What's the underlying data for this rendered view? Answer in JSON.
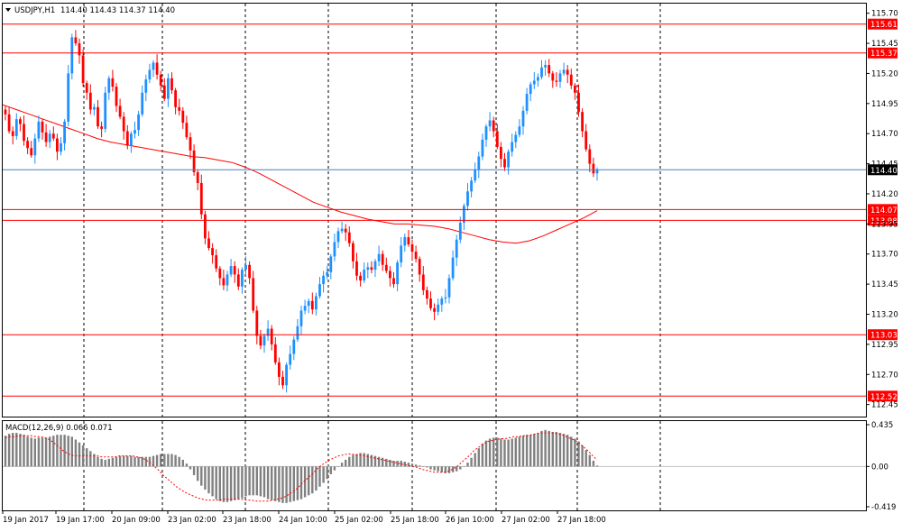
{
  "header": {
    "symbol_label": "USDJPY,H1",
    "ohlc_text": "114.40 114.43 114.37 114.40"
  },
  "macd_header": {
    "label": "MACD(12,26,9) 0.066 0.071"
  },
  "colors": {
    "bull": "#1e90ff",
    "bear": "#ff0000",
    "level": "#ff0000",
    "ma": "#ff0000",
    "current": "#4a7fc1",
    "histogram": "#808080",
    "signal": "#ff0000",
    "grid": "#000000",
    "frame": "#000000",
    "background": "#ffffff"
  },
  "chart_data": {
    "type": "candlestick",
    "symbol": "USDJPY",
    "timeframe": "H1",
    "price_axis": {
      "ylim": [
        112.35,
        115.78
      ],
      "ticks": [
        "115.70",
        "115.45",
        "115.20",
        "114.95",
        "114.70",
        "114.45",
        "114.20",
        "113.95",
        "113.70",
        "113.45",
        "113.20",
        "112.95",
        "112.70",
        "112.45"
      ]
    },
    "horizontal_levels": [
      {
        "label": "115.61",
        "value": 115.61
      },
      {
        "label": "115.37",
        "value": 115.37
      },
      {
        "label": "114.07",
        "value": 114.07
      },
      {
        "label": "113.98",
        "value": 113.98
      },
      {
        "label": "113.03",
        "value": 113.03
      },
      {
        "label": "112.52",
        "value": 112.52
      }
    ],
    "current_price": {
      "label": "114.40",
      "value": 114.4
    },
    "time_labels": [
      "19 Jan 2017",
      "19 Jan 17:00",
      "20 Jan 09:00",
      "23 Jan 02:00",
      "23 Jan 18:00",
      "24 Jan 10:00",
      "25 Jan 02:00",
      "25 Jan 18:00",
      "26 Jan 10:00",
      "27 Jan 02:00",
      "27 Jan 18:00"
    ],
    "grid": true,
    "closes": [
      114.86,
      114.72,
      114.68,
      114.82,
      114.78,
      114.64,
      114.58,
      114.52,
      114.66,
      114.8,
      114.71,
      114.63,
      114.7,
      114.66,
      114.55,
      114.62,
      114.8,
      115.2,
      115.5,
      115.45,
      115.35,
      115.12,
      115.04,
      114.9,
      114.92,
      114.76,
      114.74,
      115.04,
      115.16,
      115.09,
      114.93,
      114.84,
      114.72,
      114.6,
      114.7,
      114.73,
      114.86,
      115.04,
      115.15,
      115.23,
      115.29,
      115.19,
      115.1,
      114.99,
      115.16,
      115.06,
      114.92,
      114.89,
      114.79,
      114.67,
      114.56,
      114.38,
      114.29,
      114.03,
      113.83,
      113.75,
      113.69,
      113.58,
      113.5,
      113.44,
      113.53,
      113.6,
      113.53,
      113.43,
      113.57,
      113.61,
      113.5,
      113.23,
      113.02,
      112.94,
      113.02,
      113.08,
      112.95,
      112.8,
      112.68,
      112.61,
      112.78,
      112.87,
      112.99,
      113.1,
      113.23,
      113.27,
      113.31,
      113.24,
      113.35,
      113.45,
      113.52,
      113.55,
      113.68,
      113.8,
      113.89,
      113.91,
      113.88,
      113.79,
      113.64,
      113.52,
      113.48,
      113.57,
      113.59,
      113.57,
      113.64,
      113.7,
      113.61,
      113.56,
      113.5,
      113.45,
      113.63,
      113.77,
      113.84,
      113.78,
      113.72,
      113.66,
      113.53,
      113.4,
      113.33,
      113.25,
      113.22,
      113.28,
      113.33,
      113.34,
      113.5,
      113.67,
      113.82,
      113.96,
      114.1,
      114.22,
      114.31,
      114.4,
      114.51,
      114.65,
      114.76,
      114.81,
      114.72,
      114.59,
      114.49,
      114.42,
      114.55,
      114.63,
      114.69,
      114.76,
      114.89,
      115.03,
      115.11,
      115.14,
      115.17,
      115.25,
      115.27,
      115.2,
      115.14,
      115.13,
      115.2,
      115.23,
      115.19,
      115.1,
      115.04,
      114.88,
      114.72,
      114.57,
      114.45,
      114.37,
      114.4
    ],
    "ma": {
      "label": "moving average",
      "values": [
        114.94,
        114.9,
        114.86,
        114.82,
        114.78,
        114.74,
        114.7,
        114.66,
        114.63,
        114.61,
        114.59,
        114.57,
        114.55,
        114.53,
        114.51,
        114.5,
        114.48,
        114.46,
        114.42,
        114.37,
        114.31,
        114.25,
        114.19,
        114.13,
        114.09,
        114.05,
        114.02,
        113.99,
        113.97,
        113.95,
        113.95,
        113.94,
        113.93,
        113.91,
        113.88,
        113.85,
        113.82,
        113.8,
        113.79,
        113.81,
        113.85,
        113.9,
        113.95,
        114.0,
        114.06
      ]
    },
    "macd": {
      "ylim": [
        -0.419,
        0.435
      ],
      "ticks": [
        "0.435",
        "0.00",
        "-0.419"
      ],
      "histogram": [
        0.32,
        0.34,
        0.35,
        0.35,
        0.34,
        0.33,
        0.31,
        0.3,
        0.29,
        0.3,
        0.3,
        0.3,
        0.31,
        0.32,
        0.33,
        0.33,
        0.33,
        0.32,
        0.31,
        0.28,
        0.25,
        0.22,
        0.19,
        0.16,
        0.13,
        0.1,
        0.08,
        0.07,
        0.08,
        0.09,
        0.1,
        0.11,
        0.11,
        0.11,
        0.11,
        0.1,
        0.1,
        0.1,
        0.1,
        0.1,
        0.11,
        0.12,
        0.13,
        0.13,
        0.13,
        0.13,
        0.12,
        0.1,
        0.07,
        0.03,
        -0.03,
        -0.09,
        -0.15,
        -0.2,
        -0.24,
        -0.28,
        -0.31,
        -0.34,
        -0.36,
        -0.37,
        -0.37,
        -0.36,
        -0.35,
        -0.34,
        -0.33,
        -0.31,
        -0.3,
        -0.3,
        -0.3,
        -0.31,
        -0.32,
        -0.34,
        -0.35,
        -0.36,
        -0.37,
        -0.38,
        -0.38,
        -0.37,
        -0.36,
        -0.35,
        -0.34,
        -0.32,
        -0.3,
        -0.28,
        -0.25,
        -0.21,
        -0.17,
        -0.13,
        -0.08,
        -0.04,
        0.0,
        0.04,
        0.07,
        0.1,
        0.12,
        0.13,
        0.14,
        0.14,
        0.13,
        0.12,
        0.11,
        0.1,
        0.09,
        0.08,
        0.07,
        0.06,
        0.06,
        0.06,
        0.05,
        0.04,
        0.03,
        0.02,
        0.01,
        0.0,
        -0.01,
        -0.03,
        -0.04,
        -0.05,
        -0.06,
        -0.07,
        -0.07,
        -0.06,
        -0.05,
        -0.03,
        0.0,
        0.04,
        0.09,
        0.14,
        0.19,
        0.24,
        0.27,
        0.29,
        0.3,
        0.3,
        0.29,
        0.28,
        0.28,
        0.29,
        0.3,
        0.31,
        0.32,
        0.33,
        0.33,
        0.34,
        0.35,
        0.37,
        0.38,
        0.37,
        0.36,
        0.36,
        0.35,
        0.34,
        0.33,
        0.31,
        0.29,
        0.26,
        0.22,
        0.17,
        0.12,
        0.06,
        0.01
      ],
      "signal": [
        0.3,
        0.31,
        0.31,
        0.32,
        0.32,
        0.32,
        0.32,
        0.31,
        0.31,
        0.3,
        0.28,
        0.25,
        0.21,
        0.17,
        0.14,
        0.12,
        0.11,
        0.11,
        0.11,
        0.11,
        0.11,
        0.11,
        0.1,
        0.1,
        0.1,
        0.1,
        0.11,
        0.11,
        0.11,
        0.11,
        0.1,
        0.09,
        0.07,
        0.04,
        0.0,
        -0.04,
        -0.09,
        -0.13,
        -0.17,
        -0.21,
        -0.24,
        -0.27,
        -0.29,
        -0.31,
        -0.33,
        -0.34,
        -0.35,
        -0.35,
        -0.35,
        -0.35,
        -0.34,
        -0.34,
        -0.34,
        -0.34,
        -0.34,
        -0.35,
        -0.35,
        -0.36,
        -0.36,
        -0.36,
        -0.36,
        -0.35,
        -0.34,
        -0.33,
        -0.31,
        -0.28,
        -0.25,
        -0.21,
        -0.16,
        -0.12,
        -0.08,
        -0.03,
        0.01,
        0.04,
        0.07,
        0.09,
        0.11,
        0.12,
        0.13,
        0.13,
        0.12,
        0.12,
        0.11,
        0.1,
        0.09,
        0.08,
        0.07,
        0.06,
        0.05,
        0.04,
        0.03,
        0.02,
        0.01,
        0.0,
        -0.01,
        -0.03,
        -0.04,
        -0.05,
        -0.06,
        -0.06,
        -0.06,
        -0.05,
        -0.03,
        0.0,
        0.04,
        0.08,
        0.12,
        0.17,
        0.2,
        0.23,
        0.26,
        0.27,
        0.28,
        0.29,
        0.29,
        0.3,
        0.31,
        0.31,
        0.32,
        0.32,
        0.33,
        0.34,
        0.35,
        0.35,
        0.35,
        0.35,
        0.34,
        0.33,
        0.31,
        0.29,
        0.27,
        0.24,
        0.2,
        0.16,
        0.11,
        0.07
      ]
    }
  }
}
